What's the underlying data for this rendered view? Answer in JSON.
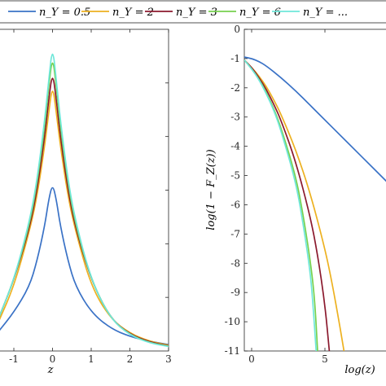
{
  "legend": {
    "entries": [
      {
        "label": "n_Y = 0.5",
        "color": "#3A72C6"
      },
      {
        "label": "n_Y = 2",
        "color": "#EDB120"
      },
      {
        "label": "n_Y = 3",
        "color": "#8B1A2E"
      },
      {
        "label": "n_Y = 6",
        "color": "#77D14E"
      },
      {
        "label": "n_Y = ...",
        "color": "#6FE7D9"
      }
    ]
  },
  "chart_data": [
    {
      "type": "line",
      "panel": "left",
      "xlabel": "z",
      "ylabel": "",
      "xlim": [
        -1.4,
        3
      ],
      "ylim": [
        0,
        1
      ],
      "xticks": [
        "-1",
        "0",
        "1",
        "2",
        "3"
      ],
      "series": [
        {
          "name": "n_Y = 0.5",
          "x": [
            -1.4,
            -1,
            -0.6,
            -0.4,
            -0.2,
            -0.1,
            0,
            0.1,
            0.2,
            0.4,
            0.6,
            1,
            1.5,
            2,
            2.5,
            3
          ],
          "y": [
            0.06,
            0.12,
            0.2,
            0.28,
            0.39,
            0.47,
            0.52,
            0.47,
            0.39,
            0.28,
            0.2,
            0.12,
            0.07,
            0.045,
            0.03,
            0.02
          ]
        },
        {
          "name": "n_Y = 2",
          "x": [
            -1.4,
            -1,
            -0.6,
            -0.4,
            -0.2,
            -0.1,
            0,
            0.1,
            0.2,
            0.4,
            0.6,
            1,
            1.5,
            2,
            2.5,
            3
          ],
          "y": [
            0.09,
            0.2,
            0.37,
            0.48,
            0.64,
            0.74,
            0.83,
            0.74,
            0.64,
            0.48,
            0.37,
            0.2,
            0.1,
            0.055,
            0.03,
            0.018
          ]
        },
        {
          "name": "n_Y = 3",
          "x": [
            -1.4,
            -1,
            -0.6,
            -0.4,
            -0.2,
            -0.1,
            0,
            0.1,
            0.2,
            0.4,
            0.6,
            1,
            1.5,
            2,
            2.5,
            3
          ],
          "y": [
            0.1,
            0.22,
            0.38,
            0.5,
            0.67,
            0.78,
            0.87,
            0.78,
            0.67,
            0.5,
            0.38,
            0.22,
            0.1,
            0.052,
            0.028,
            0.016
          ]
        },
        {
          "name": "n_Y = 6",
          "x": [
            -1.4,
            -1,
            -0.6,
            -0.4,
            -0.2,
            -0.1,
            0,
            0.1,
            0.2,
            0.4,
            0.6,
            1,
            1.5,
            2,
            2.5,
            3
          ],
          "y": [
            0.1,
            0.22,
            0.39,
            0.52,
            0.7,
            0.82,
            0.92,
            0.82,
            0.7,
            0.52,
            0.39,
            0.22,
            0.1,
            0.05,
            0.026,
            0.015
          ]
        },
        {
          "name": "n_Y = ...",
          "x": [
            -1.4,
            -1,
            -0.6,
            -0.4,
            -0.2,
            -0.1,
            0,
            0.1,
            0.2,
            0.4,
            0.6,
            1,
            1.5,
            2,
            2.5,
            3
          ],
          "y": [
            0.1,
            0.22,
            0.4,
            0.53,
            0.72,
            0.84,
            0.95,
            0.84,
            0.72,
            0.53,
            0.4,
            0.22,
            0.1,
            0.049,
            0.025,
            0.014
          ]
        }
      ]
    },
    {
      "type": "line",
      "panel": "right",
      "xlabel": "log(z)",
      "ylabel": "log(1 − F_Z(z))",
      "xlim": [
        -0.5,
        9.5
      ],
      "ylim": [
        -11,
        0
      ],
      "xticks": [
        "0",
        "5"
      ],
      "yticks": [
        "0",
        "-1",
        "-2",
        "-3",
        "-4",
        "-5",
        "-6",
        "-7",
        "-8",
        "-9",
        "-10",
        "-11"
      ],
      "series": [
        {
          "name": "n_Y = 0.5",
          "x": [
            -0.5,
            0,
            0.5,
            1,
            2,
            3,
            4,
            5,
            6,
            7,
            8,
            9,
            9.5
          ],
          "y": [
            -0.95,
            -1.0,
            -1.1,
            -1.25,
            -1.65,
            -2.1,
            -2.6,
            -3.1,
            -3.6,
            -4.1,
            -4.6,
            -5.1,
            -5.35
          ]
        },
        {
          "name": "n_Y = 2",
          "x": [
            -0.5,
            0,
            0.5,
            1,
            1.5,
            2,
            3,
            4,
            5,
            5.5,
            6,
            6.3
          ],
          "y": [
            -1.05,
            -1.3,
            -1.6,
            -1.95,
            -2.4,
            -2.9,
            -4.1,
            -5.6,
            -7.5,
            -8.7,
            -10.1,
            -11
          ]
        },
        {
          "name": "n_Y = 3",
          "x": [
            -0.5,
            0,
            0.5,
            1,
            1.5,
            2,
            3,
            4,
            4.5,
            5,
            5.3
          ],
          "y": [
            -1.05,
            -1.3,
            -1.65,
            -2.05,
            -2.55,
            -3.1,
            -4.5,
            -6.4,
            -7.7,
            -9.4,
            -11
          ]
        },
        {
          "name": "n_Y = 6",
          "x": [
            -0.5,
            0,
            0.5,
            1,
            1.5,
            2,
            3,
            3.5,
            4,
            4.3,
            4.5
          ],
          "y": [
            -1.05,
            -1.35,
            -1.7,
            -2.15,
            -2.7,
            -3.35,
            -5.0,
            -6.3,
            -7.9,
            -9.2,
            -11
          ]
        },
        {
          "name": "n_Y = ...",
          "x": [
            -0.5,
            0,
            0.5,
            1,
            1.5,
            2,
            3,
            3.5,
            4,
            4.2,
            4.4
          ],
          "y": [
            -1.05,
            -1.35,
            -1.72,
            -2.2,
            -2.75,
            -3.45,
            -5.2,
            -6.6,
            -8.3,
            -9.5,
            -11
          ]
        }
      ]
    }
  ]
}
